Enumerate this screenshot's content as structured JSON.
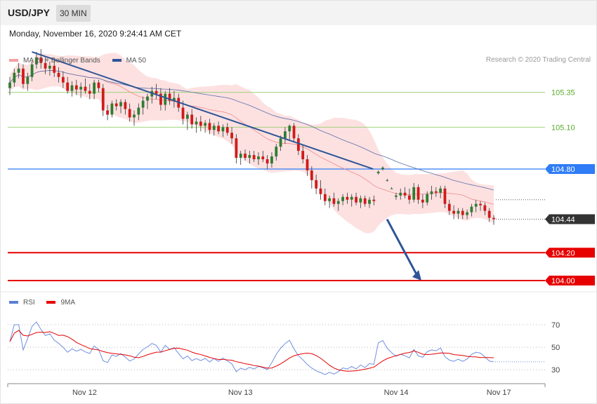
{
  "header": {
    "symbol": "USD/JPY",
    "timeframe": "30 MIN"
  },
  "datetime": "Monday, November 16, 2020 9:24:41 AM CET",
  "legend": {
    "main": [
      {
        "label": "MA 20 + Bollinger Bands",
        "color": "#f7a0a0"
      },
      {
        "label": "MA 50",
        "color": "#2f5597"
      }
    ],
    "rsi": [
      {
        "label": "RSI",
        "color": "#5b7fd6"
      },
      {
        "label": "9MA",
        "color": "#e60000"
      }
    ]
  },
  "credit": "Research © 2020 Trading Central",
  "chart_data": [
    {
      "type": "candlestick",
      "x_ticks": [
        "Nov 12",
        "Nov 13",
        "Nov 14",
        "Nov 17"
      ],
      "ylim": [
        103.97,
        105.68
      ],
      "price_levels": [
        {
          "value": 105.35,
          "label": "105.35",
          "kind": "line",
          "color": "#5aab2c"
        },
        {
          "value": 105.1,
          "label": "105.10",
          "kind": "line",
          "color": "#5aab2c"
        },
        {
          "value": 104.8,
          "label": "104.80",
          "kind": "tag",
          "color": "#2f7cf6"
        },
        {
          "value": 104.44,
          "label": "104.44",
          "kind": "current",
          "color": "#333333"
        },
        {
          "value": 104.2,
          "label": "104.20",
          "kind": "tag",
          "color": "#e60000"
        },
        {
          "value": 104.0,
          "label": "104.00",
          "kind": "tag",
          "color": "#e60000"
        }
      ],
      "trendline": {
        "from": [
          0.045,
          105.64
        ],
        "to": [
          0.68,
          104.8
        ]
      },
      "forecast_arrow": {
        "from": [
          0.706,
          104.44
        ],
        "to": [
          0.77,
          104.0
        ]
      },
      "candles": [
        [
          105.38,
          105.46,
          105.33,
          105.42
        ],
        [
          105.42,
          105.52,
          105.39,
          105.49
        ],
        [
          105.49,
          105.56,
          105.45,
          105.52
        ],
        [
          105.52,
          105.55,
          105.38,
          105.41
        ],
        [
          105.41,
          105.49,
          105.36,
          105.46
        ],
        [
          105.46,
          105.57,
          105.43,
          105.55
        ],
        [
          105.55,
          105.64,
          105.52,
          105.6
        ],
        [
          105.6,
          105.66,
          105.52,
          105.56
        ],
        [
          105.56,
          105.6,
          105.48,
          105.52
        ],
        [
          105.52,
          105.57,
          105.47,
          105.54
        ],
        [
          105.54,
          105.58,
          105.46,
          105.49
        ],
        [
          105.49,
          105.53,
          105.42,
          105.46
        ],
        [
          105.46,
          105.5,
          105.38,
          105.42
        ],
        [
          105.42,
          105.46,
          105.34,
          105.36
        ],
        [
          105.36,
          105.43,
          105.32,
          105.4
        ],
        [
          105.4,
          105.44,
          105.33,
          105.37
        ],
        [
          105.37,
          105.42,
          105.31,
          105.39
        ],
        [
          105.39,
          105.45,
          105.34,
          105.36
        ],
        [
          105.36,
          105.41,
          105.3,
          105.34
        ],
        [
          105.34,
          105.44,
          105.3,
          105.42
        ],
        [
          105.42,
          105.44,
          105.35,
          105.38
        ],
        [
          105.38,
          105.41,
          105.18,
          105.22
        ],
        [
          105.22,
          105.26,
          105.15,
          105.19
        ],
        [
          105.19,
          105.29,
          105.17,
          105.27
        ],
        [
          105.27,
          105.3,
          105.22,
          105.25
        ],
        [
          105.25,
          105.3,
          105.2,
          105.28
        ],
        [
          105.28,
          105.3,
          105.19,
          105.23
        ],
        [
          105.23,
          105.27,
          105.14,
          105.17
        ],
        [
          105.17,
          105.22,
          105.11,
          105.19
        ],
        [
          105.19,
          105.27,
          105.15,
          105.24
        ],
        [
          105.24,
          105.32,
          105.19,
          105.29
        ],
        [
          105.29,
          105.34,
          105.23,
          105.32
        ],
        [
          105.32,
          105.39,
          105.27,
          105.36
        ],
        [
          105.36,
          105.41,
          105.3,
          105.34
        ],
        [
          105.34,
          105.38,
          105.22,
          105.26
        ],
        [
          105.26,
          105.36,
          105.22,
          105.34
        ],
        [
          105.34,
          105.38,
          105.26,
          105.29
        ],
        [
          105.29,
          105.36,
          105.24,
          105.31
        ],
        [
          105.31,
          105.34,
          105.21,
          105.24
        ],
        [
          105.24,
          105.29,
          105.12,
          105.16
        ],
        [
          105.16,
          105.21,
          105.08,
          105.19
        ],
        [
          105.19,
          105.23,
          105.09,
          105.12
        ],
        [
          105.12,
          105.17,
          105.06,
          105.14
        ],
        [
          105.14,
          105.18,
          105.07,
          105.11
        ],
        [
          105.11,
          105.15,
          105.06,
          105.13
        ],
        [
          105.13,
          105.16,
          105.05,
          105.08
        ],
        [
          105.08,
          105.13,
          105.04,
          105.11
        ],
        [
          105.11,
          105.14,
          105.05,
          105.07
        ],
        [
          105.07,
          105.12,
          105.03,
          105.1
        ],
        [
          105.1,
          105.13,
          105.04,
          105.06
        ],
        [
          105.06,
          105.1,
          104.98,
          105.02
        ],
        [
          105.02,
          105.05,
          104.84,
          104.88
        ],
        [
          104.88,
          104.93,
          104.83,
          104.91
        ],
        [
          104.91,
          104.94,
          104.86,
          104.88
        ],
        [
          104.88,
          104.93,
          104.84,
          104.9
        ],
        [
          104.9,
          104.93,
          104.85,
          104.87
        ],
        [
          104.87,
          104.92,
          104.83,
          104.89
        ],
        [
          104.89,
          104.93,
          104.85,
          104.87
        ],
        [
          104.87,
          104.9,
          104.8,
          104.84
        ],
        [
          104.84,
          104.92,
          104.81,
          104.89
        ],
        [
          104.89,
          104.98,
          104.86,
          104.96
        ],
        [
          104.96,
          105.04,
          104.93,
          105.02
        ],
        [
          105.02,
          105.1,
          104.98,
          105.07
        ],
        [
          105.07,
          105.12,
          105.01,
          105.11
        ],
        [
          105.11,
          105.13,
          104.99,
          105.02
        ],
        [
          105.02,
          105.05,
          104.9,
          104.93
        ],
        [
          104.93,
          104.97,
          104.84,
          104.87
        ],
        [
          104.87,
          104.9,
          104.75,
          104.79
        ],
        [
          104.79,
          104.82,
          104.66,
          104.72
        ],
        [
          104.72,
          104.76,
          104.62,
          104.66
        ],
        [
          104.66,
          104.72,
          104.58,
          104.62
        ],
        [
          104.62,
          104.66,
          104.54,
          104.57
        ],
        [
          104.57,
          104.61,
          104.52,
          104.59
        ],
        [
          104.59,
          104.63,
          104.53,
          104.55
        ],
        [
          104.55,
          104.59,
          104.5,
          104.57
        ],
        [
          104.57,
          104.62,
          104.54,
          104.6
        ],
        [
          104.6,
          104.63,
          104.55,
          104.58
        ],
        [
          104.58,
          104.62,
          104.53,
          104.6
        ],
        [
          104.6,
          104.63,
          104.54,
          104.56
        ],
        [
          104.56,
          104.61,
          104.52,
          104.59
        ],
        [
          104.59,
          104.61,
          104.53,
          104.55
        ],
        [
          104.55,
          104.6,
          104.52,
          104.58
        ],
        [
          104.58,
          104.61,
          104.54,
          104.57
        ],
        [
          104.77,
          104.79,
          104.76,
          104.78
        ],
        [
          104.8,
          104.82,
          104.79,
          104.81
        ],
        [
          104.72,
          104.73,
          104.71,
          104.72
        ],
        [
          104.66,
          104.67,
          104.66,
          104.66
        ],
        [
          104.6,
          104.63,
          104.58,
          104.61
        ],
        [
          104.61,
          104.66,
          104.58,
          104.63
        ],
        [
          104.63,
          104.67,
          104.59,
          104.61
        ],
        [
          104.61,
          104.66,
          104.55,
          104.58
        ],
        [
          104.58,
          104.7,
          104.56,
          104.67
        ],
        [
          104.67,
          104.69,
          104.55,
          104.58
        ],
        [
          104.58,
          104.62,
          104.52,
          104.56
        ],
        [
          104.56,
          104.64,
          104.54,
          104.62
        ],
        [
          104.62,
          104.68,
          104.58,
          104.64
        ],
        [
          104.64,
          104.67,
          104.6,
          104.63
        ],
        [
          104.63,
          104.68,
          104.59,
          104.66
        ],
        [
          104.66,
          104.68,
          104.52,
          104.55
        ],
        [
          104.55,
          104.58,
          104.47,
          104.5
        ],
        [
          104.5,
          104.54,
          104.44,
          104.48
        ],
        [
          104.48,
          104.52,
          104.44,
          104.5
        ],
        [
          104.5,
          104.52,
          104.44,
          104.47
        ],
        [
          104.47,
          104.51,
          104.44,
          104.49
        ],
        [
          104.49,
          104.55,
          104.46,
          104.53
        ],
        [
          104.53,
          104.58,
          104.49,
          104.55
        ],
        [
          104.55,
          104.57,
          104.5,
          104.54
        ],
        [
          104.54,
          104.56,
          104.47,
          104.5
        ],
        [
          104.5,
          104.52,
          104.42,
          104.45
        ],
        [
          104.45,
          104.47,
          104.4,
          104.44
        ]
      ],
      "ma20_bands": {
        "period": 20,
        "stddev": 2
      },
      "ma50": {
        "period": 50
      }
    },
    {
      "type": "line",
      "series": [
        {
          "name": "RSI"
        },
        {
          "name": "9MA"
        }
      ],
      "ylim": [
        22,
        80
      ],
      "levels": [
        70,
        50,
        30
      ],
      "tick_labels": [
        "70",
        "50",
        "30"
      ]
    }
  ]
}
